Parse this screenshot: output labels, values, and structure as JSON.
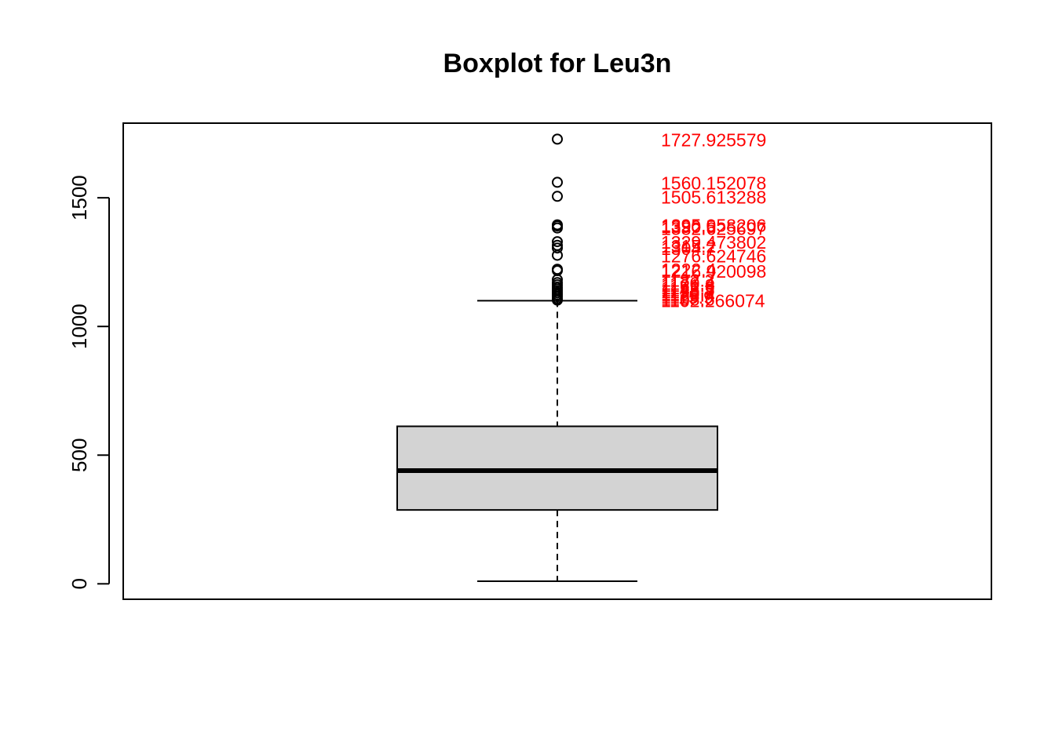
{
  "chart_data": {
    "type": "boxplot",
    "title": "Boxplot for Leu3n",
    "xlabel": "",
    "ylabel": "",
    "ylim": [
      -60,
      1790
    ],
    "y_ticks": [
      0,
      500,
      1000,
      1500
    ],
    "y_tick_labels": [
      "0",
      "500",
      "1000",
      "1500"
    ],
    "box": {
      "whisker_low": 10,
      "q1": 287,
      "median": 440,
      "q3": 612,
      "whisker_high": 1100
    },
    "outliers": [
      1727.925579,
      1560.152078,
      1505.613288,
      1395.058206,
      1390.5,
      1382.625697,
      1329.473802,
      1315.2,
      1304.7,
      1276.624746,
      1222.4,
      1216.920098,
      1182.3,
      1170.4,
      1161.8,
      1152.9,
      1145.5,
      1138.2,
      1130.7,
      1123.4,
      1115.9,
      1108.6,
      1102.266074
    ],
    "outlier_labels": [
      "1727.925579",
      "1560.152078",
      "1505.613288",
      "1395.058206",
      "1390.5",
      "1382.625697",
      "1329.473802",
      "1315.2",
      "1304.7",
      "1276.624746",
      "1222.4",
      "1216.920098",
      "1182.3",
      "1170.4",
      "1161.8",
      "1152.9",
      "1145.5",
      "1138.2",
      "1130.7",
      "1123.4",
      "1115.9",
      "1108.6",
      "1102.266074"
    ],
    "colors": {
      "box_fill": "#d3d3d3",
      "outlier_label": "#ff0000",
      "stroke": "#000000"
    }
  }
}
